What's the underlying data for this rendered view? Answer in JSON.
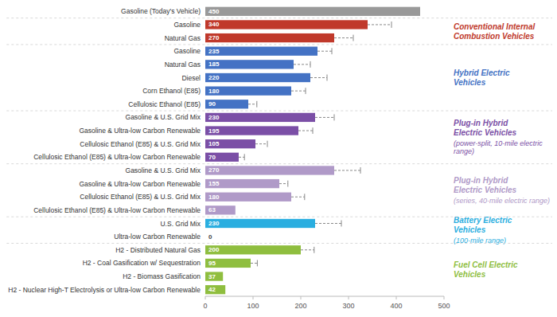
{
  "chart_data": {
    "type": "bar",
    "orientation": "horizontal",
    "categories": [
      "Gasoline (Today's Vehicle)",
      "Gasoline",
      "Natural Gas",
      "Gasoline",
      "Natural Gas",
      "Diesel",
      "Corn Ethanol (E85)",
      "Cellulosic Ethanol (E85)",
      "Gasoline & U.S. Grid Mix",
      "Gasoline & Ultra-low Carbon Renewable",
      "Cellulosic Ethanol (E85) & U.S. Grid Mix",
      "Cellulosic Ethanol (E85) & Ultra-low Carbon Renewable",
      "Gasoline & U.S. Grid Mix",
      "Gasoline & Ultra-low Carbon Renewable",
      "Cellulosic Ethanol (E85) & U.S. Grid Mix",
      "Cellulosic Ethanol (E85) & Ultra-low Carbon Renewable",
      "U.S. Grid Mix",
      "Ultra-low Carbon Renewable",
      "H2 - Distributed Natural Gas",
      "H2 - Coal Gasification w/ Sequestration",
      "H2 - Biomass Gasification",
      "H2 - Nuclear High-T Electrolysis or Ultra-low Carbon Renewable"
    ],
    "values": [
      450,
      340,
      270,
      235,
      185,
      220,
      180,
      90,
      230,
      195,
      105,
      70,
      270,
      155,
      180,
      63,
      230,
      0,
      200,
      95,
      37,
      42
    ],
    "errors": [
      null,
      50,
      40,
      30,
      35,
      35,
      30,
      18,
      40,
      30,
      25,
      12,
      55,
      18,
      28,
      null,
      55,
      null,
      28,
      14,
      null,
      null
    ],
    "colors": [
      "#999999",
      "#c0392b",
      "#c0392b",
      "#4472c4",
      "#4472c4",
      "#4472c4",
      "#4472c4",
      "#4472c4",
      "#7b4fa6",
      "#7b4fa6",
      "#7b4fa6",
      "#7b4fa6",
      "#b09ac8",
      "#b09ac8",
      "#b09ac8",
      "#b09ac8",
      "#2aaee0",
      "#2aaee0",
      "#8fbe3f",
      "#8fbe3f",
      "#8fbe3f",
      "#8fbe3f"
    ],
    "xlim": [
      0,
      500
    ],
    "xticks": [
      0,
      100,
      200,
      300,
      400,
      500
    ],
    "data_labels": true,
    "grid": false,
    "annotations": [
      {
        "text": "Conventional Internal\nCombustion Vehicles",
        "color": "#c0392b",
        "first": 1,
        "last": 2
      },
      {
        "text": "Hybrid Electric\nVehicles",
        "color": "#4472c4",
        "first": 3,
        "last": 7
      },
      {
        "text": "Plug-in Hybrid\nElectric Vehicles",
        "subtext": "(power-split, 10-mile electric\nrange)",
        "color": "#7b4fa6",
        "first": 8,
        "last": 11
      },
      {
        "text": "Plug-in Hybrid\nElectric Vehicles",
        "subtext": "(series, 40-mile electric range)",
        "color": "#b09ac8",
        "first": 12,
        "last": 15
      },
      {
        "text": "Battery Electric\nVehicles",
        "subtext": "(100-mile range)",
        "color": "#2aaee0",
        "first": 16,
        "last": 17
      },
      {
        "text": "Fuel Cell Electric\nVehicles",
        "color": "#8fbe3f",
        "first": 18,
        "last": 21
      }
    ]
  }
}
